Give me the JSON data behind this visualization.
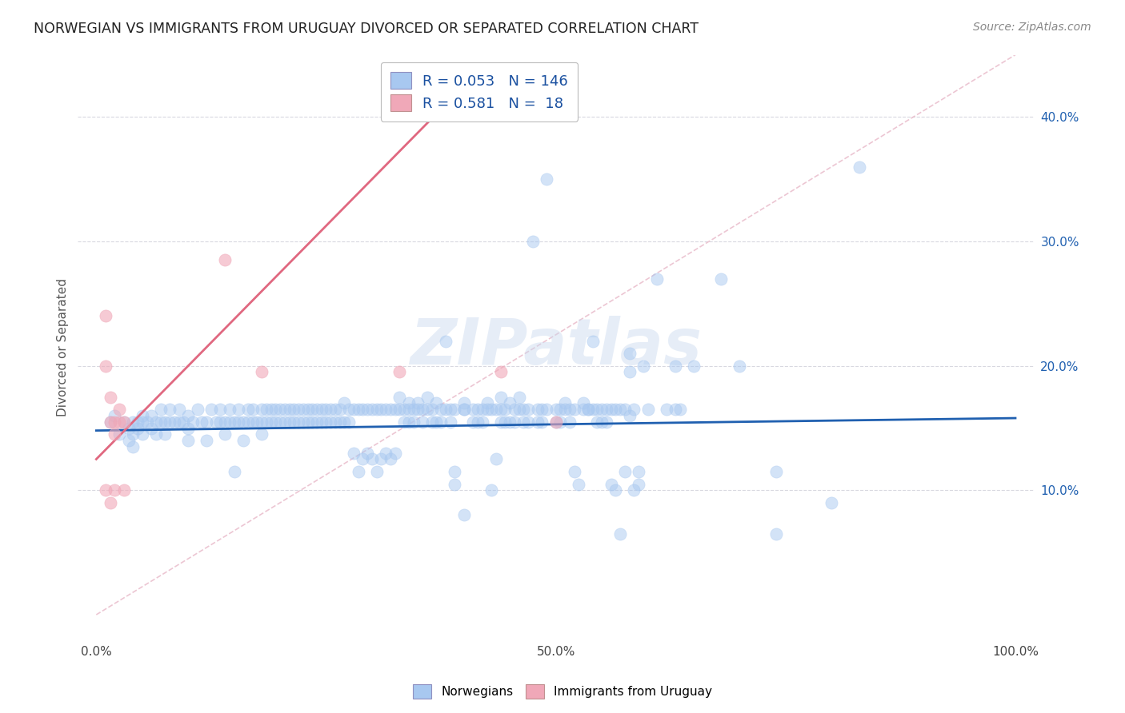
{
  "title": "NORWEGIAN VS IMMIGRANTS FROM URUGUAY DIVORCED OR SEPARATED CORRELATION CHART",
  "source": "Source: ZipAtlas.com",
  "ylabel": "Divorced or Separated",
  "watermark": "ZIPatlas",
  "xlim": [
    -0.02,
    1.02
  ],
  "ylim": [
    -0.02,
    0.45
  ],
  "legend_blue_label": "Norwegians",
  "legend_pink_label": "Immigrants from Uruguay",
  "R_blue": "0.053",
  "N_blue": "146",
  "R_pink": "0.581",
  "N_pink": "18",
  "blue_color": "#a8c8f0",
  "pink_color": "#f0a8b8",
  "blue_line_color": "#2060b0",
  "pink_line_color": "#e06880",
  "dashed_line_color": "#e8b8c8",
  "grid_color": "#d8d8e0",
  "blue_scatter": [
    [
      0.015,
      0.155
    ],
    [
      0.02,
      0.16
    ],
    [
      0.025,
      0.145
    ],
    [
      0.03,
      0.155
    ],
    [
      0.035,
      0.15
    ],
    [
      0.035,
      0.14
    ],
    [
      0.04,
      0.155
    ],
    [
      0.04,
      0.145
    ],
    [
      0.04,
      0.135
    ],
    [
      0.045,
      0.155
    ],
    [
      0.045,
      0.15
    ],
    [
      0.05,
      0.16
    ],
    [
      0.05,
      0.155
    ],
    [
      0.05,
      0.145
    ],
    [
      0.055,
      0.155
    ],
    [
      0.06,
      0.16
    ],
    [
      0.06,
      0.15
    ],
    [
      0.065,
      0.155
    ],
    [
      0.065,
      0.145
    ],
    [
      0.07,
      0.165
    ],
    [
      0.07,
      0.155
    ],
    [
      0.075,
      0.155
    ],
    [
      0.075,
      0.145
    ],
    [
      0.08,
      0.165
    ],
    [
      0.08,
      0.155
    ],
    [
      0.085,
      0.155
    ],
    [
      0.09,
      0.165
    ],
    [
      0.09,
      0.155
    ],
    [
      0.095,
      0.155
    ],
    [
      0.1,
      0.16
    ],
    [
      0.1,
      0.15
    ],
    [
      0.1,
      0.14
    ],
    [
      0.105,
      0.155
    ],
    [
      0.11,
      0.165
    ],
    [
      0.115,
      0.155
    ],
    [
      0.12,
      0.155
    ],
    [
      0.12,
      0.14
    ],
    [
      0.125,
      0.165
    ],
    [
      0.13,
      0.155
    ],
    [
      0.135,
      0.165
    ],
    [
      0.135,
      0.155
    ],
    [
      0.14,
      0.155
    ],
    [
      0.14,
      0.145
    ],
    [
      0.145,
      0.165
    ],
    [
      0.145,
      0.155
    ],
    [
      0.15,
      0.155
    ],
    [
      0.15,
      0.115
    ],
    [
      0.155,
      0.165
    ],
    [
      0.155,
      0.155
    ],
    [
      0.16,
      0.155
    ],
    [
      0.16,
      0.14
    ],
    [
      0.165,
      0.165
    ],
    [
      0.165,
      0.155
    ],
    [
      0.17,
      0.165
    ],
    [
      0.17,
      0.155
    ],
    [
      0.175,
      0.155
    ],
    [
      0.18,
      0.165
    ],
    [
      0.18,
      0.155
    ],
    [
      0.18,
      0.145
    ],
    [
      0.185,
      0.165
    ],
    [
      0.185,
      0.155
    ],
    [
      0.19,
      0.165
    ],
    [
      0.19,
      0.155
    ],
    [
      0.195,
      0.165
    ],
    [
      0.195,
      0.155
    ],
    [
      0.2,
      0.165
    ],
    [
      0.2,
      0.155
    ],
    [
      0.205,
      0.165
    ],
    [
      0.205,
      0.155
    ],
    [
      0.21,
      0.165
    ],
    [
      0.21,
      0.155
    ],
    [
      0.215,
      0.165
    ],
    [
      0.215,
      0.155
    ],
    [
      0.22,
      0.165
    ],
    [
      0.22,
      0.155
    ],
    [
      0.225,
      0.165
    ],
    [
      0.225,
      0.155
    ],
    [
      0.23,
      0.165
    ],
    [
      0.23,
      0.155
    ],
    [
      0.235,
      0.165
    ],
    [
      0.235,
      0.155
    ],
    [
      0.24,
      0.165
    ],
    [
      0.24,
      0.155
    ],
    [
      0.245,
      0.165
    ],
    [
      0.245,
      0.155
    ],
    [
      0.25,
      0.165
    ],
    [
      0.25,
      0.155
    ],
    [
      0.255,
      0.165
    ],
    [
      0.255,
      0.155
    ],
    [
      0.26,
      0.165
    ],
    [
      0.26,
      0.155
    ],
    [
      0.265,
      0.165
    ],
    [
      0.265,
      0.155
    ],
    [
      0.27,
      0.17
    ],
    [
      0.27,
      0.155
    ],
    [
      0.275,
      0.165
    ],
    [
      0.275,
      0.155
    ],
    [
      0.28,
      0.165
    ],
    [
      0.28,
      0.13
    ],
    [
      0.285,
      0.165
    ],
    [
      0.285,
      0.115
    ],
    [
      0.29,
      0.165
    ],
    [
      0.29,
      0.125
    ],
    [
      0.295,
      0.165
    ],
    [
      0.295,
      0.13
    ],
    [
      0.3,
      0.165
    ],
    [
      0.3,
      0.125
    ],
    [
      0.305,
      0.165
    ],
    [
      0.305,
      0.115
    ],
    [
      0.31,
      0.165
    ],
    [
      0.31,
      0.125
    ],
    [
      0.315,
      0.165
    ],
    [
      0.315,
      0.13
    ],
    [
      0.32,
      0.165
    ],
    [
      0.32,
      0.125
    ],
    [
      0.325,
      0.165
    ],
    [
      0.325,
      0.13
    ],
    [
      0.33,
      0.175
    ],
    [
      0.33,
      0.165
    ],
    [
      0.335,
      0.165
    ],
    [
      0.335,
      0.155
    ],
    [
      0.34,
      0.17
    ],
    [
      0.34,
      0.165
    ],
    [
      0.34,
      0.155
    ],
    [
      0.345,
      0.165
    ],
    [
      0.345,
      0.155
    ],
    [
      0.35,
      0.17
    ],
    [
      0.35,
      0.165
    ],
    [
      0.355,
      0.165
    ],
    [
      0.355,
      0.155
    ],
    [
      0.36,
      0.175
    ],
    [
      0.36,
      0.165
    ],
    [
      0.365,
      0.165
    ],
    [
      0.365,
      0.155
    ],
    [
      0.37,
      0.17
    ],
    [
      0.37,
      0.155
    ],
    [
      0.375,
      0.165
    ],
    [
      0.375,
      0.155
    ],
    [
      0.38,
      0.22
    ],
    [
      0.38,
      0.165
    ],
    [
      0.385,
      0.165
    ],
    [
      0.385,
      0.155
    ],
    [
      0.39,
      0.165
    ],
    [
      0.39,
      0.115
    ],
    [
      0.39,
      0.105
    ],
    [
      0.4,
      0.165
    ],
    [
      0.4,
      0.17
    ],
    [
      0.4,
      0.165
    ],
    [
      0.4,
      0.08
    ],
    [
      0.41,
      0.165
    ],
    [
      0.41,
      0.155
    ],
    [
      0.415,
      0.165
    ],
    [
      0.415,
      0.155
    ],
    [
      0.42,
      0.165
    ],
    [
      0.42,
      0.155
    ],
    [
      0.425,
      0.17
    ],
    [
      0.425,
      0.165
    ],
    [
      0.43,
      0.165
    ],
    [
      0.43,
      0.1
    ],
    [
      0.435,
      0.165
    ],
    [
      0.435,
      0.125
    ],
    [
      0.44,
      0.175
    ],
    [
      0.44,
      0.165
    ],
    [
      0.44,
      0.155
    ],
    [
      0.445,
      0.165
    ],
    [
      0.445,
      0.155
    ],
    [
      0.45,
      0.17
    ],
    [
      0.45,
      0.155
    ],
    [
      0.455,
      0.165
    ],
    [
      0.455,
      0.155
    ],
    [
      0.46,
      0.175
    ],
    [
      0.46,
      0.165
    ],
    [
      0.465,
      0.165
    ],
    [
      0.465,
      0.155
    ],
    [
      0.47,
      0.165
    ],
    [
      0.47,
      0.155
    ],
    [
      0.475,
      0.3
    ],
    [
      0.48,
      0.165
    ],
    [
      0.48,
      0.155
    ],
    [
      0.485,
      0.165
    ],
    [
      0.485,
      0.155
    ],
    [
      0.49,
      0.35
    ],
    [
      0.49,
      0.165
    ],
    [
      0.5,
      0.165
    ],
    [
      0.5,
      0.155
    ],
    [
      0.505,
      0.165
    ],
    [
      0.505,
      0.155
    ],
    [
      0.51,
      0.17
    ],
    [
      0.51,
      0.165
    ],
    [
      0.515,
      0.165
    ],
    [
      0.515,
      0.155
    ],
    [
      0.52,
      0.165
    ],
    [
      0.52,
      0.115
    ],
    [
      0.525,
      0.105
    ],
    [
      0.53,
      0.165
    ],
    [
      0.53,
      0.17
    ],
    [
      0.535,
      0.165
    ],
    [
      0.535,
      0.165
    ],
    [
      0.54,
      0.22
    ],
    [
      0.54,
      0.165
    ],
    [
      0.545,
      0.165
    ],
    [
      0.545,
      0.155
    ],
    [
      0.55,
      0.165
    ],
    [
      0.55,
      0.155
    ],
    [
      0.555,
      0.165
    ],
    [
      0.555,
      0.155
    ],
    [
      0.56,
      0.165
    ],
    [
      0.56,
      0.105
    ],
    [
      0.565,
      0.165
    ],
    [
      0.565,
      0.1
    ],
    [
      0.57,
      0.165
    ],
    [
      0.57,
      0.065
    ],
    [
      0.575,
      0.165
    ],
    [
      0.575,
      0.115
    ],
    [
      0.58,
      0.21
    ],
    [
      0.58,
      0.195
    ],
    [
      0.58,
      0.16
    ],
    [
      0.585,
      0.165
    ],
    [
      0.585,
      0.1
    ],
    [
      0.59,
      0.115
    ],
    [
      0.59,
      0.105
    ],
    [
      0.595,
      0.2
    ],
    [
      0.6,
      0.165
    ],
    [
      0.61,
      0.27
    ],
    [
      0.62,
      0.165
    ],
    [
      0.63,
      0.2
    ],
    [
      0.63,
      0.165
    ],
    [
      0.635,
      0.165
    ],
    [
      0.65,
      0.2
    ],
    [
      0.68,
      0.27
    ],
    [
      0.7,
      0.2
    ],
    [
      0.74,
      0.115
    ],
    [
      0.74,
      0.065
    ],
    [
      0.8,
      0.09
    ],
    [
      0.83,
      0.36
    ]
  ],
  "pink_scatter": [
    [
      0.01,
      0.24
    ],
    [
      0.01,
      0.2
    ],
    [
      0.015,
      0.175
    ],
    [
      0.015,
      0.155
    ],
    [
      0.02,
      0.155
    ],
    [
      0.02,
      0.145
    ],
    [
      0.02,
      0.1
    ],
    [
      0.025,
      0.165
    ],
    [
      0.025,
      0.155
    ],
    [
      0.03,
      0.155
    ],
    [
      0.03,
      0.1
    ],
    [
      0.14,
      0.285
    ],
    [
      0.18,
      0.195
    ],
    [
      0.33,
      0.195
    ],
    [
      0.44,
      0.195
    ],
    [
      0.5,
      0.155
    ],
    [
      0.01,
      0.1
    ],
    [
      0.015,
      0.09
    ]
  ],
  "blue_trend_x": [
    0.0,
    1.0
  ],
  "blue_trend_y": [
    0.148,
    0.158
  ],
  "pink_trend_x": [
    0.0,
    0.42
  ],
  "pink_trend_y": [
    0.125,
    0.44
  ],
  "dashed_trend_x": [
    0.0,
    1.0
  ],
  "dashed_trend_y": [
    0.0,
    0.45
  ]
}
